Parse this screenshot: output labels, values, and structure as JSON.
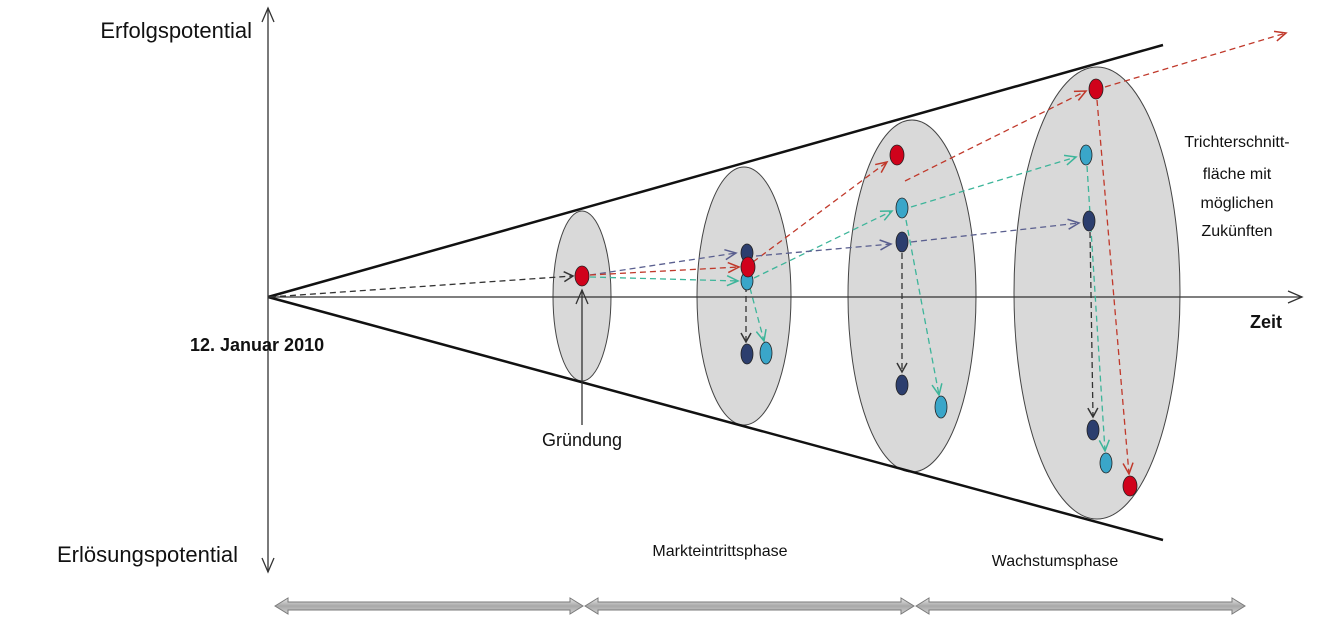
{
  "labels": {
    "y_top": "Erfolgspotential",
    "y_bottom": "Erlösungspotential",
    "x_axis": "Zeit",
    "origin_date": "12. Januar 2010",
    "founding": "Gründung",
    "phase_market_entry": "Markteintrittsphase",
    "phase_growth": "Wachstumsphase",
    "funnel_note_line1": "Trichterschnitt-",
    "funnel_note_line2": "fläche mit",
    "funnel_note_line3": "möglichen",
    "funnel_note_line4": "Zukünften"
  },
  "colors": {
    "red": "#d0021b",
    "teal": "#3aa6c9",
    "navy": "#2c3e6e",
    "ellipse_fill": "#d9d9d9",
    "arrow_red": "#c0392b",
    "arrow_teal": "#3db59a",
    "arrow_navy": "#5a5f8f",
    "arrow_black": "#333333",
    "phase_bar": "#b0b0b0"
  }
}
